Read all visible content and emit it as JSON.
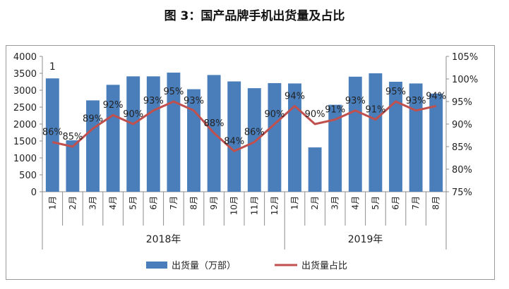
{
  "title": "图 3：国产品牌手机出货量及占比",
  "chart_data": {
    "type": "bar+line",
    "title": "图 3：国产品牌手机出货量及占比",
    "categories": [
      "1月",
      "2月",
      "3月",
      "4月",
      "5月",
      "6月",
      "7月",
      "8月",
      "9月",
      "10月",
      "11月",
      "12月",
      "1月",
      "2月",
      "3月",
      "4月",
      "5月",
      "6月",
      "7月",
      "8月"
    ],
    "year_groups": [
      {
        "label": "2018年",
        "count": 12
      },
      {
        "label": "2019年",
        "count": 8
      }
    ],
    "series": [
      {
        "name": "出货量（万部）",
        "type": "bar",
        "axis": "left",
        "color": "#4a7ebb",
        "values": [
          3350,
          1520,
          2700,
          3160,
          3410,
          3410,
          3520,
          3030,
          3450,
          3260,
          3060,
          3210,
          3200,
          1310,
          2570,
          3400,
          3500,
          3250,
          3200,
          2900
        ]
      },
      {
        "name": "出货量占比",
        "type": "line",
        "axis": "right",
        "color": "#c0504d",
        "values": [
          86,
          85,
          89,
          92,
          90,
          93,
          95,
          93,
          88,
          84,
          86,
          90,
          94,
          90,
          91,
          93,
          91,
          95,
          93,
          94
        ],
        "labels": [
          "86%",
          "85%",
          "89%",
          "92%",
          "90%",
          "93%",
          "95%",
          "93%",
          "88%",
          "84%",
          "86%",
          "90%",
          "94%",
          "90%",
          "91%",
          "93%",
          "91%",
          "95%",
          "93%",
          "94%"
        ]
      }
    ],
    "y_left": {
      "min": 0,
      "max": 4000,
      "step": 500,
      "ticks": [
        "0",
        "500",
        "1000",
        "1500",
        "2000",
        "2500",
        "3000",
        "3500",
        "4000"
      ]
    },
    "y_right": {
      "min": 75,
      "max": 105,
      "step": 5,
      "ticks": [
        "75%",
        "80%",
        "85%",
        "90%",
        "95%",
        "100%",
        "105%"
      ]
    },
    "annotation": "1",
    "legend_position": "bottom",
    "grid": false
  }
}
